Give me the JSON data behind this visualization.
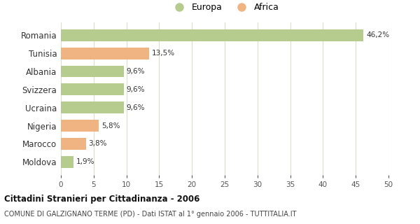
{
  "categories": [
    "Romania",
    "Tunisia",
    "Albania",
    "Svizzera",
    "Ucraina",
    "Nigeria",
    "Marocco",
    "Moldova"
  ],
  "values": [
    46.2,
    13.5,
    9.6,
    9.6,
    9.6,
    5.8,
    3.8,
    1.9
  ],
  "labels": [
    "46,2%",
    "13,5%",
    "9,6%",
    "9,6%",
    "9,6%",
    "5,8%",
    "3,8%",
    "1,9%"
  ],
  "continent": [
    "Europa",
    "Africa",
    "Europa",
    "Europa",
    "Europa",
    "Africa",
    "Africa",
    "Europa"
  ],
  "color_europa": "#b5cc8e",
  "color_africa": "#f0b482",
  "xlim": [
    0,
    50
  ],
  "xticks": [
    0,
    5,
    10,
    15,
    20,
    25,
    30,
    35,
    40,
    45,
    50
  ],
  "title": "Cittadini Stranieri per Cittadinanza - 2006",
  "subtitle": "COMUNE DI GALZIGNANO TERME (PD) - Dati ISTAT al 1° gennaio 2006 - TUTTITALIA.IT",
  "legend_europa": "Europa",
  "legend_africa": "Africa",
  "background_color": "#ffffff",
  "grid_color": "#ddddcc",
  "bar_height": 0.65
}
